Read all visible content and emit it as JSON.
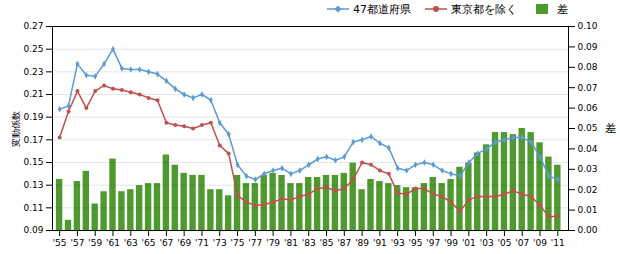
{
  "chart_data": {
    "type": "line",
    "ylabel": "変動係数",
    "y2label": "差",
    "x": [
      1955,
      1956,
      1957,
      1958,
      1959,
      1960,
      1961,
      1962,
      1963,
      1964,
      1965,
      1966,
      1967,
      1968,
      1969,
      1970,
      1971,
      1972,
      1973,
      1974,
      1975,
      1976,
      1977,
      1978,
      1979,
      1980,
      1981,
      1982,
      1983,
      1984,
      1985,
      1986,
      1987,
      1988,
      1989,
      1990,
      1991,
      1992,
      1993,
      1994,
      1995,
      1996,
      1997,
      1998,
      1999,
      2000,
      2001,
      2002,
      2003,
      2004,
      2005,
      2006,
      2007,
      2008,
      2009,
      2010,
      2011
    ],
    "series": [
      {
        "name": "47都道府県",
        "type": "line",
        "marker": "diamond",
        "color": "#5b9bd5",
        "values": [
          0.197,
          0.2,
          0.237,
          0.227,
          0.226,
          0.237,
          0.25,
          0.233,
          0.232,
          0.232,
          0.23,
          0.228,
          0.222,
          0.215,
          0.21,
          0.207,
          0.21,
          0.205,
          0.185,
          0.175,
          0.148,
          0.138,
          0.135,
          0.14,
          0.143,
          0.145,
          0.14,
          0.143,
          0.148,
          0.153,
          0.155,
          0.152,
          0.155,
          0.168,
          0.17,
          0.173,
          0.167,
          0.163,
          0.145,
          0.143,
          0.148,
          0.15,
          0.148,
          0.143,
          0.14,
          0.138,
          0.15,
          0.158,
          0.162,
          0.168,
          0.17,
          0.172,
          0.172,
          0.168,
          0.155,
          0.138,
          0.135
        ]
      },
      {
        "name": "東京都を除く",
        "type": "line",
        "marker": "circle",
        "color": "#c0504d",
        "values": [
          0.172,
          0.195,
          0.213,
          0.198,
          0.213,
          0.218,
          0.215,
          0.214,
          0.212,
          0.21,
          0.207,
          0.205,
          0.185,
          0.183,
          0.182,
          0.18,
          0.183,
          0.185,
          0.165,
          0.158,
          0.121,
          0.115,
          0.112,
          0.113,
          0.115,
          0.118,
          0.117,
          0.12,
          0.122,
          0.127,
          0.128,
          0.125,
          0.127,
          0.135,
          0.15,
          0.148,
          0.143,
          0.14,
          0.123,
          0.122,
          0.127,
          0.127,
          0.122,
          0.12,
          0.115,
          0.107,
          0.117,
          0.12,
          0.12,
          0.12,
          0.122,
          0.125,
          0.122,
          0.12,
          0.112,
          0.102,
          0.103
        ]
      },
      {
        "name": "差",
        "type": "bar",
        "axis": "y2",
        "color": "#4f9a2f",
        "values": [
          0.025,
          0.005,
          0.024,
          0.029,
          0.013,
          0.019,
          0.035,
          0.019,
          0.02,
          0.022,
          0.023,
          0.023,
          0.037,
          0.032,
          0.028,
          0.027,
          0.027,
          0.02,
          0.02,
          0.017,
          0.027,
          0.023,
          0.023,
          0.027,
          0.028,
          0.027,
          0.023,
          0.023,
          0.026,
          0.026,
          0.027,
          0.027,
          0.028,
          0.033,
          0.02,
          0.025,
          0.024,
          0.023,
          0.022,
          0.021,
          0.021,
          0.023,
          0.026,
          0.023,
          0.025,
          0.031,
          0.033,
          0.038,
          0.042,
          0.048,
          0.048,
          0.047,
          0.05,
          0.048,
          0.043,
          0.036,
          0.032
        ]
      }
    ],
    "xlim": [
      1954.2,
      2012.2
    ],
    "xticks": [
      {
        "value": 1955,
        "label": "'55"
      },
      {
        "value": 1957,
        "label": "'57"
      },
      {
        "value": 1959,
        "label": "'59"
      },
      {
        "value": 1961,
        "label": "'61"
      },
      {
        "value": 1963,
        "label": "'63"
      },
      {
        "value": 1965,
        "label": "'65"
      },
      {
        "value": 1967,
        "label": "'67"
      },
      {
        "value": 1969,
        "label": "'69"
      },
      {
        "value": 1971,
        "label": "'71"
      },
      {
        "value": 1973,
        "label": "'73"
      },
      {
        "value": 1975,
        "label": "'75"
      },
      {
        "value": 1977,
        "label": "'77"
      },
      {
        "value": 1979,
        "label": "'79"
      },
      {
        "value": 1981,
        "label": "'81"
      },
      {
        "value": 1983,
        "label": "'83"
      },
      {
        "value": 1985,
        "label": "'85"
      },
      {
        "value": 1987,
        "label": "'87"
      },
      {
        "value": 1989,
        "label": "'89"
      },
      {
        "value": 1991,
        "label": "'91"
      },
      {
        "value": 1993,
        "label": "'93"
      },
      {
        "value": 1995,
        "label": "'95"
      },
      {
        "value": 1997,
        "label": "'97"
      },
      {
        "value": 1999,
        "label": "'99"
      },
      {
        "value": 2001,
        "label": "'01"
      },
      {
        "value": 2003,
        "label": "'03"
      },
      {
        "value": 2005,
        "label": "'05"
      },
      {
        "value": 2007,
        "label": "'07"
      },
      {
        "value": 2009,
        "label": "'09"
      },
      {
        "value": 2011,
        "label": "'11"
      }
    ],
    "ylim": [
      0.09,
      0.27
    ],
    "yticks": [
      0.09,
      0.11,
      0.13,
      0.15,
      0.17,
      0.19,
      0.21,
      0.23,
      0.25,
      0.27
    ],
    "y2lim": [
      0.0,
      0.1
    ],
    "y2ticks": [
      {
        "value": 0,
        "label": "0.00"
      },
      0.01,
      0.02,
      0.03,
      0.04,
      0.05,
      0.06,
      0.07,
      0.08,
      0.09,
      {
        "value": 0.1,
        "label": "0.10"
      }
    ],
    "grid": true,
    "legend": "upper right"
  }
}
